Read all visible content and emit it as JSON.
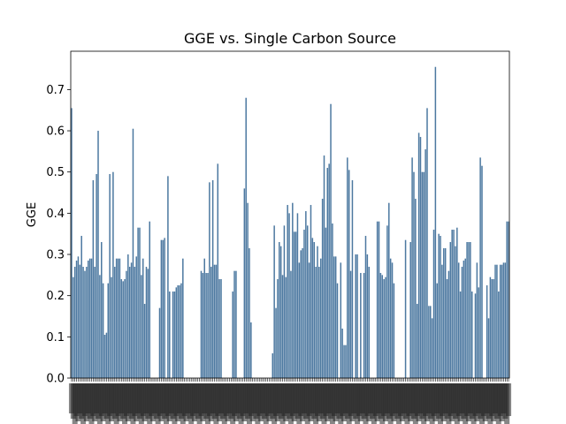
{
  "chart_data": {
    "type": "bar",
    "title": "GGE vs. Single Carbon Source",
    "xlabel": "",
    "ylabel": "GGE",
    "ylim": [
      0,
      0.793
    ],
    "yticks": [
      "0.0",
      "0.1",
      "0.2",
      "0.3",
      "0.4",
      "0.5",
      "0.6",
      "0.7"
    ],
    "bar_color": "#4c78a0",
    "grid": false,
    "legend": "none",
    "values": [
      0.655,
      0.245,
      0.27,
      0.285,
      0.295,
      0.275,
      0.345,
      0.27,
      0.26,
      0.27,
      0.285,
      0.29,
      0.29,
      0.48,
      0.27,
      0.495,
      0.6,
      0.25,
      0.33,
      0.23,
      0.105,
      0.11,
      0.23,
      0.495,
      0.245,
      0.5,
      0.27,
      0.29,
      0.29,
      0.29,
      0.24,
      0.235,
      0.24,
      0.26,
      0.3,
      0.27,
      0.28,
      0.605,
      0.27,
      0.295,
      0.365,
      0.365,
      0.25,
      0.29,
      0.18,
      0.27,
      0.265,
      0.38,
      0,
      0,
      0,
      0,
      0,
      0.17,
      0.335,
      0.335,
      0.34,
      0,
      0.49,
      0.21,
      0,
      0.21,
      0.21,
      0.22,
      0.225,
      0.225,
      0.23,
      0.29,
      0,
      0,
      0,
      0,
      0,
      0,
      0,
      0,
      0,
      0,
      0.26,
      0.255,
      0.29,
      0.255,
      0.255,
      0.475,
      0.27,
      0.48,
      0.275,
      0.275,
      0.52,
      0.24,
      0.24,
      0,
      0,
      0,
      0,
      0,
      0,
      0.21,
      0.26,
      0.26,
      0,
      0,
      0,
      0,
      0.46,
      0.68,
      0.425,
      0.315,
      0.135,
      0,
      0,
      0,
      0,
      0,
      0,
      0,
      0,
      0,
      0,
      0,
      0,
      0.06,
      0.37,
      0.17,
      0.24,
      0.33,
      0.32,
      0.25,
      0.37,
      0.245,
      0.42,
      0.4,
      0.26,
      0.425,
      0.355,
      0.355,
      0.4,
      0.28,
      0.31,
      0.315,
      0.36,
      0.405,
      0.37,
      0.28,
      0.42,
      0.34,
      0.33,
      0.27,
      0.32,
      0.27,
      0.29,
      0.435,
      0.54,
      0.365,
      0.51,
      0.52,
      0.665,
      0.375,
      0.295,
      0.295,
      0.23,
      0,
      0.28,
      0.12,
      0.08,
      0.08,
      0.535,
      0.505,
      0.26,
      0.48,
      0,
      0.3,
      0.3,
      0,
      0.255,
      0,
      0.255,
      0.345,
      0.3,
      0.27,
      0,
      0,
      0,
      0,
      0.38,
      0.38,
      0.255,
      0.25,
      0.24,
      0.245,
      0.37,
      0.425,
      0.29,
      0.28,
      0.23,
      0,
      0,
      0,
      0,
      0,
      0,
      0.335,
      0,
      0,
      0.33,
      0.535,
      0.5,
      0.435,
      0.18,
      0.595,
      0.585,
      0.5,
      0.5,
      0.555,
      0.655,
      0.175,
      0.175,
      0.145,
      0.36,
      0.755,
      0.23,
      0.35,
      0.345,
      0.275,
      0.315,
      0.315,
      0.24,
      0.26,
      0.33,
      0.36,
      0.36,
      0.32,
      0.365,
      0.28,
      0.21,
      0.27,
      0.285,
      0.29,
      0.33,
      0.33,
      0.33,
      0.21,
      0,
      0.205,
      0.28,
      0.22,
      0.535,
      0.515,
      0,
      0,
      0.225,
      0.145,
      0.245,
      0.24,
      0.24,
      0.275,
      0.275,
      0.21,
      0.275,
      0.275,
      0.28,
      0.28,
      0.38,
      0.38
    ]
  }
}
